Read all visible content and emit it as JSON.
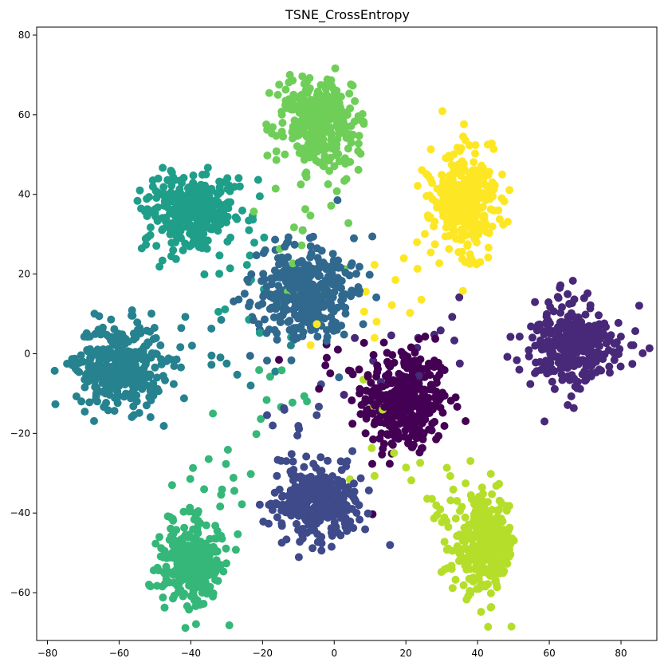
{
  "chart_data": {
    "type": "scatter",
    "title": "TSNE_CrossEntropy",
    "xlabel": "",
    "ylabel": "",
    "xlim": [
      -83,
      90
    ],
    "ylim": [
      -72,
      82
    ],
    "xticks": [
      -80,
      -60,
      -40,
      -20,
      0,
      20,
      40,
      60,
      80
    ],
    "xtick_labels": [
      "−80",
      "−60",
      "−40",
      "−20",
      "0",
      "20",
      "40",
      "60",
      "80"
    ],
    "yticks": [
      -60,
      -40,
      -20,
      0,
      20,
      40,
      60,
      80
    ],
    "ytick_labels": [
      "−60",
      "−40",
      "−20",
      "0",
      "20",
      "40",
      "60",
      "80"
    ],
    "grid": false,
    "legend": "none",
    "colormap": "viridis",
    "clusters": [
      {
        "label": 0,
        "color": "#440154",
        "center": [
          20,
          -12
        ],
        "spread": [
          8,
          9
        ],
        "count": 340
      },
      {
        "label": 1,
        "color": "#482878",
        "center": [
          67,
          2
        ],
        "spread": [
          8,
          7
        ],
        "count": 330
      },
      {
        "label": 2,
        "color": "#3e4a89",
        "center": [
          -5,
          -37
        ],
        "spread": [
          8,
          6
        ],
        "count": 320
      },
      {
        "label": 3,
        "color": "#31688e",
        "center": [
          -8,
          15
        ],
        "spread": [
          10,
          8
        ],
        "count": 320
      },
      {
        "label": 4,
        "color": "#26828e",
        "center": [
          -60,
          -3
        ],
        "spread": [
          8,
          7
        ],
        "count": 330
      },
      {
        "label": 5,
        "color": "#1f9e89",
        "center": [
          -40,
          36
        ],
        "spread": [
          9,
          6
        ],
        "count": 330
      },
      {
        "label": 6,
        "color": "#35b779",
        "center": [
          -40,
          -52
        ],
        "spread": [
          6,
          7
        ],
        "count": 320
      },
      {
        "label": 7,
        "color": "#6ece58",
        "center": [
          -4,
          58
        ],
        "spread": [
          7,
          8
        ],
        "count": 330
      },
      {
        "label": 8,
        "color": "#b5de2b",
        "center": [
          42,
          -48
        ],
        "spread": [
          6,
          8
        ],
        "count": 320
      },
      {
        "label": 9,
        "color": "#fde725",
        "center": [
          37,
          38
        ],
        "spread": [
          6,
          9
        ],
        "count": 320
      }
    ]
  }
}
